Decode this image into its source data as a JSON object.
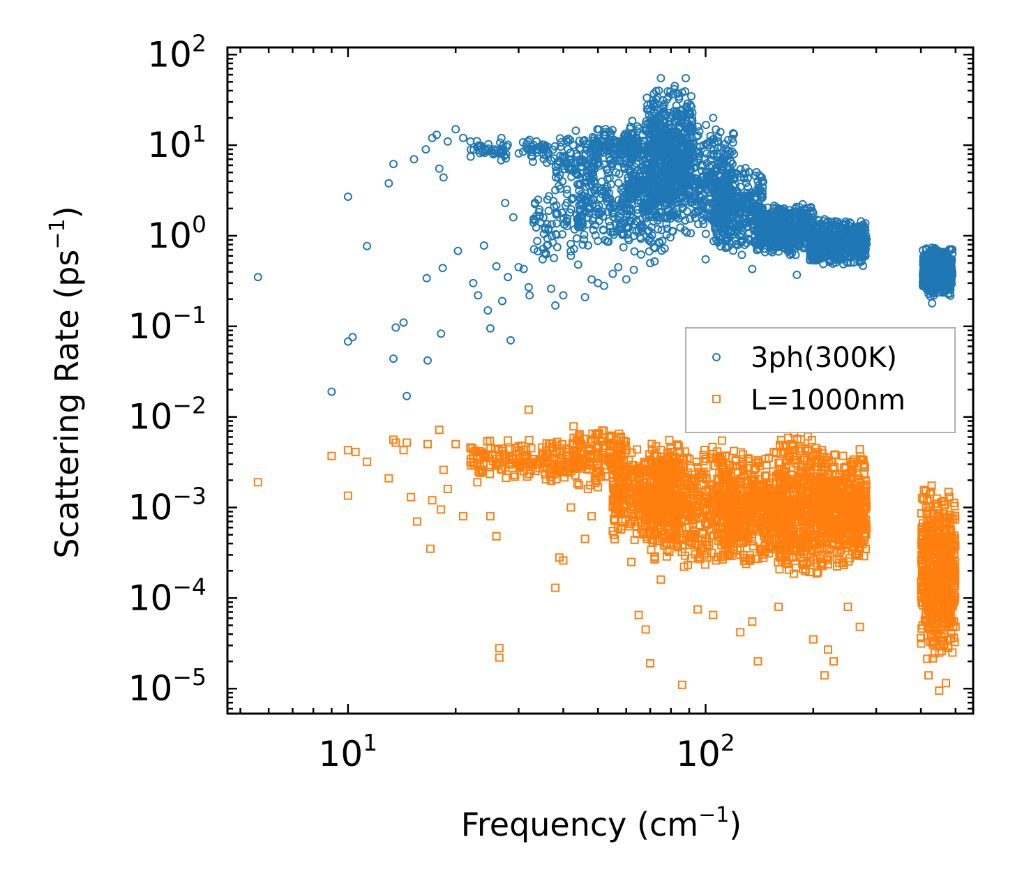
{
  "chart_data": {
    "type": "scatter",
    "x_scale": "log",
    "y_scale": "log",
    "xlim": [
      4.6,
      560
    ],
    "ylim": [
      5.3e-06,
      120
    ],
    "xlabel": "Frequency (cm",
    "xlabel_sup": "−1",
    "xlabel_close": ")",
    "ylabel": "Scattering Rate (ps",
    "ylabel_sup": "−1",
    "ylabel_close": ")",
    "x_ticks": [
      {
        "value": 10,
        "base": "10",
        "exp": "1"
      },
      {
        "value": 100,
        "base": "10",
        "exp": "2"
      }
    ],
    "y_ticks": [
      {
        "value": 100,
        "base": "10",
        "exp": "2"
      },
      {
        "value": 10,
        "base": "10",
        "exp": "1"
      },
      {
        "value": 1,
        "base": "10",
        "exp": "0"
      },
      {
        "value": 0.1,
        "base": "10",
        "exp": "−1"
      },
      {
        "value": 0.01,
        "base": "10",
        "exp": "−2"
      },
      {
        "value": 0.001,
        "base": "10",
        "exp": "−3"
      },
      {
        "value": 0.0001,
        "base": "10",
        "exp": "−4"
      },
      {
        "value": 1e-05,
        "base": "10",
        "exp": "−5"
      }
    ],
    "legend_position": "center-right",
    "series": [
      {
        "name": "3ph(300K)",
        "marker": "circle",
        "color": "#1f77b4",
        "points": [
          [
            5.6,
            0.35
          ],
          [
            9.0,
            0.019
          ],
          [
            10.0,
            2.7
          ],
          [
            10.0,
            0.068
          ],
          [
            10.3,
            0.076
          ],
          [
            11.3,
            0.77
          ],
          [
            13.0,
            3.8
          ],
          [
            13.4,
            6.2
          ],
          [
            13.4,
            0.044
          ],
          [
            13.6,
            0.097
          ],
          [
            14.3,
            0.11
          ],
          [
            14.6,
            0.017
          ],
          [
            15.3,
            7.0
          ],
          [
            16.5,
            9.0
          ],
          [
            16.6,
            0.34
          ],
          [
            16.7,
            0.042
          ],
          [
            17.2,
            12.0
          ],
          [
            17.7,
            13.0
          ],
          [
            18.0,
            5.5
          ],
          [
            18.2,
            0.083
          ],
          [
            18.4,
            0.44
          ],
          [
            18.5,
            4.4
          ],
          [
            19.0,
            11.0
          ],
          [
            20.0,
            15.0
          ],
          [
            20.3,
            0.68
          ],
          [
            21.0,
            12.0
          ],
          [
            22.0,
            11.0
          ],
          [
            22.4,
            0.3
          ],
          [
            23.1,
            0.22
          ],
          [
            24.0,
            0.78
          ],
          [
            24.6,
            0.15
          ],
          [
            25.0,
            0.095
          ],
          [
            26.0,
            0.46
          ],
          [
            27.0,
            0.19
          ],
          [
            27.5,
            2.3
          ],
          [
            28.0,
            0.35
          ],
          [
            28.5,
            0.07
          ],
          [
            29.0,
            1.6
          ],
          [
            30.0,
            0.45
          ],
          [
            31.0,
            0.43
          ],
          [
            32.0,
            0.27
          ],
          [
            32.2,
            0.22
          ],
          [
            33.0,
            1.4
          ],
          [
            34.0,
            2.5
          ],
          [
            35.0,
            0.55
          ],
          [
            36.0,
            0.78
          ],
          [
            37.0,
            0.26
          ],
          [
            38.0,
            0.17
          ],
          [
            40.0,
            0.22
          ],
          [
            42.0,
            0.6
          ],
          [
            44.0,
            0.48
          ],
          [
            46.0,
            0.21
          ],
          [
            48.0,
            0.33
          ],
          [
            50.0,
            0.3
          ],
          [
            52.0,
            0.28
          ],
          [
            55.0,
            0.38
          ],
          [
            57.0,
            0.45
          ],
          [
            60.0,
            0.33
          ],
          [
            63.0,
            0.42
          ],
          [
            66.0,
            0.62
          ],
          [
            70.0,
            0.5
          ],
          [
            72.0,
            0.52
          ],
          [
            74.0,
            40.0
          ],
          [
            75.0,
            55.0
          ],
          [
            78.0,
            32.0
          ],
          [
            82.0,
            45.0
          ],
          [
            86.0,
            38.0
          ],
          [
            88.0,
            55.0
          ],
          [
            90.0,
            22.0
          ],
          [
            95.0,
            16.0
          ],
          [
            100.0,
            0.55
          ],
          [
            105.0,
            20.0
          ],
          [
            110.0,
            14.0
          ],
          [
            120.0,
            8.0
          ],
          [
            135.0,
            0.43
          ],
          [
            140.0,
            4.0
          ],
          [
            150.0,
            1.5
          ],
          [
            160.0,
            0.75
          ],
          [
            180.0,
            0.37
          ],
          [
            200.0,
            1.2
          ],
          [
            230.0,
            0.9
          ],
          [
            260.0,
            0.6
          ],
          [
            280.0,
            0.85
          ],
          [
            420.0,
            0.5
          ],
          [
            430.0,
            0.18
          ],
          [
            470.0,
            0.6
          ]
        ],
        "clusters": [
          {
            "x": [
              22,
              28
            ],
            "y": [
              6,
              13
            ],
            "n": 40
          },
          {
            "x": [
              30,
              38
            ],
            "y": [
              6,
              13
            ],
            "n": 40
          },
          {
            "x": [
              33,
              45
            ],
            "y": [
              0.5,
              4
            ],
            "n": 80
          },
          {
            "x": [
              38,
              50
            ],
            "y": [
              3,
              15
            ],
            "n": 110
          },
          {
            "x": [
              44,
              62
            ],
            "y": [
              0.7,
              6
            ],
            "n": 160
          },
          {
            "x": [
              48,
              65
            ],
            "y": [
              5,
              17
            ],
            "n": 150
          },
          {
            "x": [
              60,
              80
            ],
            "y": [
              0.6,
              20
            ],
            "n": 380
          },
          {
            "x": [
              68,
              92
            ],
            "y": [
              2,
              48
            ],
            "n": 420
          },
          {
            "x": [
              80,
              120
            ],
            "y": [
              0.8,
              20
            ],
            "n": 380
          },
          {
            "x": [
              105,
              145
            ],
            "y": [
              0.6,
              6
            ],
            "n": 380
          },
          {
            "x": [
              140,
              200
            ],
            "y": [
              0.6,
              2.3
            ],
            "n": 480
          },
          {
            "x": [
              195,
              282
            ],
            "y": [
              0.45,
              1.6
            ],
            "n": 480
          },
          {
            "x": [
              405,
              490
            ],
            "y": [
              0.2,
              0.8
            ],
            "n": 500
          }
        ]
      },
      {
        "name": "L=1000nm",
        "marker": "square",
        "color": "#ff7f0e",
        "points": [
          [
            5.6,
            0.0019
          ],
          [
            9.0,
            0.0037
          ],
          [
            10.0,
            0.0043
          ],
          [
            10.0,
            0.00135
          ],
          [
            10.5,
            0.0041
          ],
          [
            11.3,
            0.0032
          ],
          [
            13.0,
            0.0021
          ],
          [
            13.4,
            0.0056
          ],
          [
            13.6,
            0.0052
          ],
          [
            14.3,
            0.0043
          ],
          [
            14.6,
            0.0052
          ],
          [
            15.0,
            0.0013
          ],
          [
            15.6,
            0.0007
          ],
          [
            16.7,
            0.005
          ],
          [
            17.0,
            0.00035
          ],
          [
            17.2,
            0.0012
          ],
          [
            18.0,
            0.0072
          ],
          [
            18.2,
            0.00095
          ],
          [
            18.5,
            0.0026
          ],
          [
            19.0,
            0.0016
          ],
          [
            20.0,
            0.005
          ],
          [
            21.0,
            0.0008
          ],
          [
            22.0,
            0.0046
          ],
          [
            23.0,
            0.0019
          ],
          [
            25.0,
            0.0008
          ],
          [
            26.0,
            0.00048
          ],
          [
            26.5,
            2.8e-05
          ],
          [
            26.5,
            2.2e-05
          ],
          [
            28.0,
            0.0055
          ],
          [
            30.0,
            0.0047
          ],
          [
            32.0,
            0.012
          ],
          [
            35.0,
            0.0027
          ],
          [
            38.0,
            0.00013
          ],
          [
            39.0,
            0.00028
          ],
          [
            40.0,
            0.00026
          ],
          [
            42.0,
            0.001
          ],
          [
            46.0,
            0.00045
          ],
          [
            48.0,
            0.0008
          ],
          [
            55.0,
            0.00055
          ],
          [
            62.0,
            0.00025
          ],
          [
            65.0,
            6.5e-05
          ],
          [
            68.0,
            4.5e-05
          ],
          [
            70.0,
            1.9e-05
          ],
          [
            75.0,
            0.00016
          ],
          [
            86.0,
            1.1e-05
          ],
          [
            95.0,
            7.5e-05
          ],
          [
            105.0,
            6.5e-05
          ],
          [
            125.0,
            4.2e-05
          ],
          [
            135.0,
            5.5e-05
          ],
          [
            140.0,
            2e-05
          ],
          [
            160.0,
            8e-05
          ],
          [
            200.0,
            3.5e-05
          ],
          [
            215.0,
            1.4e-05
          ],
          [
            220.0,
            2.7e-05
          ],
          [
            228.0,
            2e-05
          ],
          [
            250.0,
            8e-05
          ],
          [
            270.0,
            4.8e-05
          ],
          [
            420.0,
            1.4e-05
          ],
          [
            450.0,
            9.5e-06
          ],
          [
            470.0,
            1.15e-05
          ],
          [
            490.0,
            2.5e-05
          ],
          [
            500.0,
            4.8e-05
          ]
        ],
        "clusters": [
          {
            "x": [
              22,
              32
            ],
            "y": [
              0.0019,
              0.006
            ],
            "n": 90
          },
          {
            "x": [
              32,
              45
            ],
            "y": [
              0.0019,
              0.006
            ],
            "n": 110
          },
          {
            "x": [
              42,
              60
            ],
            "y": [
              0.0015,
              0.009
            ],
            "n": 150
          },
          {
            "x": [
              55,
              85
            ],
            "y": [
              0.0004,
              0.005
            ],
            "n": 420
          },
          {
            "x": [
              70,
              120
            ],
            "y": [
              0.0002,
              0.006
            ],
            "n": 520
          },
          {
            "x": [
              110,
              170
            ],
            "y": [
              0.0002,
              0.005
            ],
            "n": 520
          },
          {
            "x": [
              160,
              215
            ],
            "y": [
              0.00015,
              0.007
            ],
            "n": 450
          },
          {
            "x": [
              210,
              282
            ],
            "y": [
              0.0002,
              0.0045
            ],
            "n": 480
          },
          {
            "x": [
              400,
              500
            ],
            "y": [
              2e-05,
              0.002
            ],
            "n": 550
          }
        ]
      }
    ]
  }
}
